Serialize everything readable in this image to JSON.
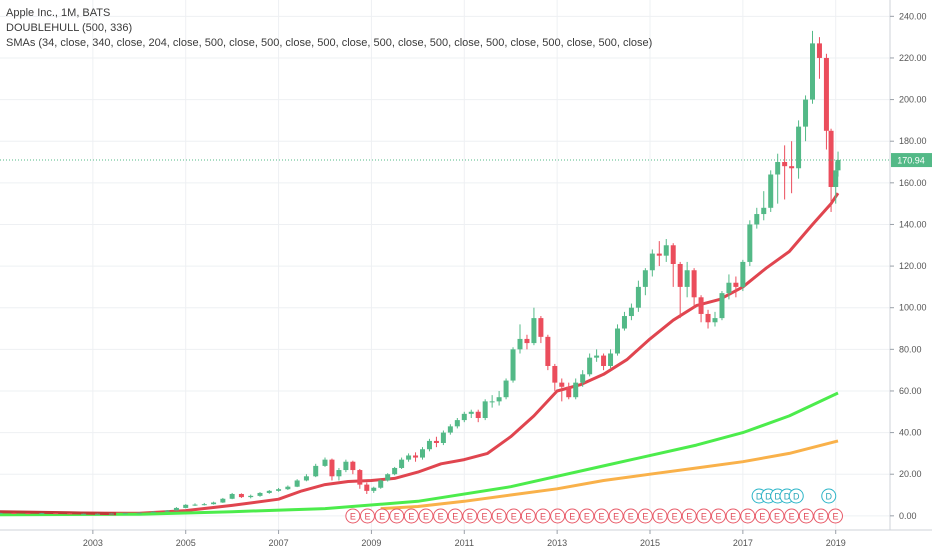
{
  "legend": {
    "title": "Apple Inc., 1M, BATS",
    "indicator1": "DOUBLEHULL (500, 336)",
    "indicator2": "SMAs (34, close, 340, close, 204, close, 500, close, 500, close, 500, close, 500, close, 500, close, 500, close, 500, close, 500, close)"
  },
  "price_label": "170.94",
  "colors": {
    "up": "#53b987",
    "down": "#eb4d5c",
    "sma34": "#e0454f",
    "sma_green": "#4cec4c",
    "sma_orange": "#f9b14a",
    "dark_line": "#c03838",
    "price_tag": "#53b987"
  },
  "chart_data": {
    "type": "candlestick",
    "y_range": [
      -2,
      244
    ],
    "y_ticks": [
      "240.00",
      "220.00",
      "200.00",
      "180.00",
      "160.00",
      "140.00",
      "120.00",
      "100.00",
      "80.00",
      "60.00",
      "40.00",
      "20.00",
      "0.00"
    ],
    "y_tick_values": [
      240,
      220,
      200,
      180,
      160,
      140,
      120,
      100,
      80,
      60,
      40,
      20,
      0
    ],
    "x_range": [
      2001.0,
      2019.2
    ],
    "x_ticks": [
      "2003",
      "2005",
      "2007",
      "2009",
      "2011",
      "2013",
      "2015",
      "2017",
      "2019"
    ],
    "x_tick_values": [
      2003,
      2005,
      2007,
      2009,
      2011,
      2013,
      2015,
      2017,
      2019
    ],
    "last_price": 170.94,
    "series": [
      {
        "name": "34",
        "color_key": "sma34",
        "points": [
          [
            2001.0,
            1.5
          ],
          [
            2004.0,
            1.2
          ],
          [
            2005.0,
            2.5
          ],
          [
            2006.0,
            5.0
          ],
          [
            2007.0,
            8.0
          ],
          [
            2007.5,
            12.0
          ],
          [
            2008.0,
            15.0
          ],
          [
            2008.5,
            16.5
          ],
          [
            2009.0,
            17.0
          ],
          [
            2009.5,
            18.0
          ],
          [
            2010.0,
            21.0
          ],
          [
            2010.5,
            25.0
          ],
          [
            2011.0,
            27.0
          ],
          [
            2011.5,
            30.0
          ],
          [
            2012.0,
            38.0
          ],
          [
            2012.5,
            48.0
          ],
          [
            2013.0,
            60.0
          ],
          [
            2013.5,
            63.0
          ],
          [
            2014.0,
            68.0
          ],
          [
            2014.5,
            75.0
          ],
          [
            2015.0,
            85.0
          ],
          [
            2015.5,
            94.0
          ],
          [
            2016.0,
            101.0
          ],
          [
            2016.5,
            104.0
          ],
          [
            2017.0,
            110.0
          ],
          [
            2017.5,
            119.0
          ],
          [
            2018.0,
            127.0
          ],
          [
            2018.5,
            140.0
          ],
          [
            2018.9,
            150.0
          ],
          [
            2019.05,
            155.0
          ]
        ]
      },
      {
        "name": "340",
        "color_key": "sma_green",
        "points": [
          [
            2001.0,
            0.5
          ],
          [
            2004.0,
            0.8
          ],
          [
            2006.0,
            2.0
          ],
          [
            2008.0,
            3.5
          ],
          [
            2010.0,
            7.0
          ],
          [
            2012.0,
            14.0
          ],
          [
            2014.0,
            24.0
          ],
          [
            2016.0,
            34.0
          ],
          [
            2017.0,
            40.0
          ],
          [
            2018.0,
            48.0
          ],
          [
            2019.05,
            59.0
          ]
        ]
      },
      {
        "name": "204",
        "color_key": "sma_orange",
        "points": [
          [
            2009.2,
            3.5
          ],
          [
            2010.0,
            4.5
          ],
          [
            2011.0,
            7.0
          ],
          [
            2012.0,
            10.0
          ],
          [
            2013.0,
            13.0
          ],
          [
            2014.0,
            17.0
          ],
          [
            2015.0,
            20.0
          ],
          [
            2016.0,
            23.0
          ],
          [
            2017.0,
            26.0
          ],
          [
            2018.0,
            30.0
          ],
          [
            2019.05,
            36.0
          ]
        ]
      },
      {
        "name": "500",
        "color_key": "dark_line",
        "points": [
          [
            2001.0,
            2.0
          ],
          [
            2002.5,
            1.5
          ],
          [
            2003.5,
            1.0
          ]
        ]
      }
    ],
    "candles": [
      [
        2001.0,
        1.3,
        1.4,
        1.5,
        1.2
      ],
      [
        2001.3,
        1.4,
        1.3,
        1.5,
        1.1
      ],
      [
        2001.6,
        1.3,
        1.2,
        1.4,
        1.1
      ],
      [
        2001.9,
        1.2,
        1.3,
        1.4,
        1.1
      ],
      [
        2002.2,
        1.3,
        1.2,
        1.4,
        1.0
      ],
      [
        2002.5,
        1.2,
        1.0,
        1.3,
        0.9
      ],
      [
        2002.8,
        1.0,
        1.0,
        1.1,
        0.9
      ],
      [
        2003.1,
        1.0,
        1.0,
        1.1,
        0.9
      ],
      [
        2003.4,
        1.0,
        1.1,
        1.2,
        0.9
      ],
      [
        2003.7,
        1.1,
        1.3,
        1.4,
        1.0
      ],
      [
        2004.0,
        1.3,
        1.5,
        1.6,
        1.2
      ],
      [
        2004.3,
        1.5,
        2.0,
        2.2,
        1.4
      ],
      [
        2004.6,
        2.0,
        2.6,
        2.8,
        1.9
      ],
      [
        2004.8,
        2.6,
        3.8,
        4.2,
        2.5
      ],
      [
        2005.0,
        3.8,
        5.3,
        5.6,
        3.6
      ],
      [
        2005.2,
        5.3,
        5.4,
        6.0,
        4.8
      ],
      [
        2005.4,
        5.4,
        5.6,
        6.2,
        5.0
      ],
      [
        2005.6,
        5.6,
        6.4,
        6.8,
        5.4
      ],
      [
        2005.8,
        6.4,
        8.2,
        8.6,
        6.2
      ],
      [
        2006.0,
        8.2,
        10.5,
        11.0,
        8.0
      ],
      [
        2006.2,
        10.5,
        9.0,
        10.8,
        8.6
      ],
      [
        2006.4,
        9.0,
        9.6,
        10.2,
        8.4
      ],
      [
        2006.6,
        9.6,
        11.0,
        11.4,
        9.2
      ],
      [
        2006.8,
        11.0,
        12.0,
        12.4,
        10.6
      ],
      [
        2007.0,
        12.0,
        12.8,
        13.4,
        11.6
      ],
      [
        2007.2,
        12.8,
        14.0,
        14.6,
        12.4
      ],
      [
        2007.4,
        14.0,
        17.0,
        17.6,
        13.8
      ],
      [
        2007.6,
        17.0,
        19.0,
        20.0,
        16.6
      ],
      [
        2007.8,
        19.0,
        24.0,
        25.0,
        18.6
      ],
      [
        2008.0,
        24.0,
        27.0,
        28.0,
        23.5
      ],
      [
        2008.15,
        27.0,
        19.0,
        27.5,
        17.0
      ],
      [
        2008.3,
        19.0,
        22.0,
        23.0,
        17.0
      ],
      [
        2008.45,
        22.0,
        26.0,
        27.0,
        21.0
      ],
      [
        2008.6,
        26.0,
        22.0,
        26.5,
        20.0
      ],
      [
        2008.75,
        22.0,
        15.0,
        22.5,
        13.0
      ],
      [
        2008.9,
        15.0,
        12.0,
        16.0,
        10.5
      ],
      [
        2009.05,
        12.0,
        13.5,
        14.0,
        11.0
      ],
      [
        2009.2,
        13.5,
        17.0,
        17.5,
        13.0
      ],
      [
        2009.35,
        17.0,
        20.0,
        20.5,
        16.5
      ],
      [
        2009.5,
        20.0,
        23.0,
        23.5,
        19.5
      ],
      [
        2009.65,
        23.0,
        27.0,
        28.0,
        22.5
      ],
      [
        2009.8,
        27.0,
        29.0,
        30.0,
        26.0
      ],
      [
        2009.95,
        29.0,
        28.0,
        30.5,
        26.0
      ],
      [
        2010.1,
        28.0,
        32.0,
        33.0,
        27.0
      ],
      [
        2010.25,
        32.0,
        36.0,
        37.0,
        31.0
      ],
      [
        2010.4,
        36.0,
        35.0,
        38.0,
        33.0
      ],
      [
        2010.55,
        35.0,
        40.0,
        41.0,
        34.0
      ],
      [
        2010.7,
        40.0,
        43.0,
        44.0,
        39.0
      ],
      [
        2010.85,
        43.0,
        46.0,
        47.0,
        42.0
      ],
      [
        2011.0,
        46.0,
        49.0,
        50.0,
        45.0
      ],
      [
        2011.15,
        49.0,
        50.0,
        51.0,
        47.0
      ],
      [
        2011.3,
        50.0,
        47.0,
        51.0,
        45.0
      ],
      [
        2011.45,
        47.0,
        55.0,
        56.0,
        46.0
      ],
      [
        2011.6,
        55.0,
        55.0,
        58.0,
        52.0
      ],
      [
        2011.75,
        55.0,
        57.0,
        60.0,
        53.0
      ],
      [
        2011.9,
        57.0,
        65.0,
        66.0,
        56.0
      ],
      [
        2012.05,
        65.0,
        80.0,
        81.0,
        64.0
      ],
      [
        2012.2,
        80.0,
        85.0,
        92.0,
        78.0
      ],
      [
        2012.35,
        85.0,
        83.0,
        87.0,
        80.0
      ],
      [
        2012.5,
        83.0,
        95.0,
        100.0,
        82.0
      ],
      [
        2012.65,
        95.0,
        86.0,
        96.0,
        83.0
      ],
      [
        2012.8,
        86.0,
        72.0,
        87.0,
        70.0
      ],
      [
        2012.95,
        72.0,
        64.0,
        73.0,
        60.0
      ],
      [
        2013.1,
        64.0,
        62.0,
        66.0,
        55.0
      ],
      [
        2013.25,
        62.0,
        57.0,
        64.0,
        56.0
      ],
      [
        2013.4,
        57.0,
        64.0,
        66.0,
        56.0
      ],
      [
        2013.55,
        64.0,
        68.0,
        70.0,
        62.0
      ],
      [
        2013.7,
        68.0,
        76.0,
        78.0,
        67.0
      ],
      [
        2013.85,
        76.0,
        77.0,
        80.0,
        74.0
      ],
      [
        2014.0,
        77.0,
        72.0,
        78.0,
        70.0
      ],
      [
        2014.15,
        72.0,
        78.0,
        80.0,
        71.0
      ],
      [
        2014.3,
        78.0,
        90.0,
        92.0,
        77.0
      ],
      [
        2014.45,
        90.0,
        96.0,
        98.0,
        89.0
      ],
      [
        2014.6,
        96.0,
        100.0,
        102.0,
        94.0
      ],
      [
        2014.75,
        100.0,
        110.0,
        113.0,
        98.0
      ],
      [
        2014.9,
        110.0,
        118.0,
        119.0,
        106.0
      ],
      [
        2015.05,
        118.0,
        126.0,
        128.0,
        115.0
      ],
      [
        2015.2,
        126.0,
        125.0,
        132.0,
        120.0
      ],
      [
        2015.35,
        125.0,
        130.0,
        133.0,
        122.0
      ],
      [
        2015.5,
        130.0,
        121.0,
        131.0,
        110.0
      ],
      [
        2015.65,
        121.0,
        110.0,
        122.0,
        95.0
      ],
      [
        2015.8,
        110.0,
        118.0,
        122.0,
        105.0
      ],
      [
        2015.95,
        118.0,
        105.0,
        119.0,
        100.0
      ],
      [
        2016.1,
        105.0,
        97.0,
        106.0,
        93.0
      ],
      [
        2016.25,
        97.0,
        93.0,
        99.0,
        90.0
      ],
      [
        2016.4,
        93.0,
        95.0,
        98.0,
        91.0
      ],
      [
        2016.55,
        95.0,
        107.0,
        108.0,
        94.0
      ],
      [
        2016.7,
        107.0,
        112.0,
        116.0,
        104.0
      ],
      [
        2016.85,
        112.0,
        110.0,
        115.0,
        105.0
      ],
      [
        2017.0,
        110.0,
        122.0,
        123.0,
        108.0
      ],
      [
        2017.15,
        122.0,
        140.0,
        142.0,
        120.0
      ],
      [
        2017.3,
        140.0,
        145.0,
        148.0,
        138.0
      ],
      [
        2017.45,
        145.0,
        148.0,
        156.0,
        142.0
      ],
      [
        2017.6,
        148.0,
        164.0,
        166.0,
        146.0
      ],
      [
        2017.75,
        164.0,
        170.0,
        174.0,
        150.0
      ],
      [
        2017.9,
        170.0,
        168.0,
        178.0,
        152.0
      ],
      [
        2018.05,
        168.0,
        167.0,
        180.0,
        155.0
      ],
      [
        2018.2,
        167.0,
        187.0,
        190.0,
        162.0
      ],
      [
        2018.35,
        187.0,
        200.0,
        202.0,
        180.0
      ],
      [
        2018.5,
        200.0,
        227.0,
        233.0,
        198.0
      ],
      [
        2018.65,
        227.0,
        220.0,
        230.0,
        210.0
      ],
      [
        2018.8,
        220.0,
        185.0,
        222.0,
        176.0
      ],
      [
        2018.9,
        185.0,
        158.0,
        186.0,
        146.0
      ],
      [
        2019.0,
        158.0,
        166.0,
        170.0,
        150.0
      ],
      [
        2019.05,
        166.0,
        171.0,
        175.0,
        163.0
      ]
    ],
    "dividend_markers": [
      "D",
      "D",
      "D",
      "D",
      "D",
      "D"
    ],
    "dividend_x": [
      2017.35,
      2017.55,
      2017.75,
      2017.95,
      2018.15,
      2018.85
    ],
    "earnings_marker": "E",
    "earnings_count": 34,
    "earnings_start": 2008.6,
    "earnings_step": 0.315
  }
}
